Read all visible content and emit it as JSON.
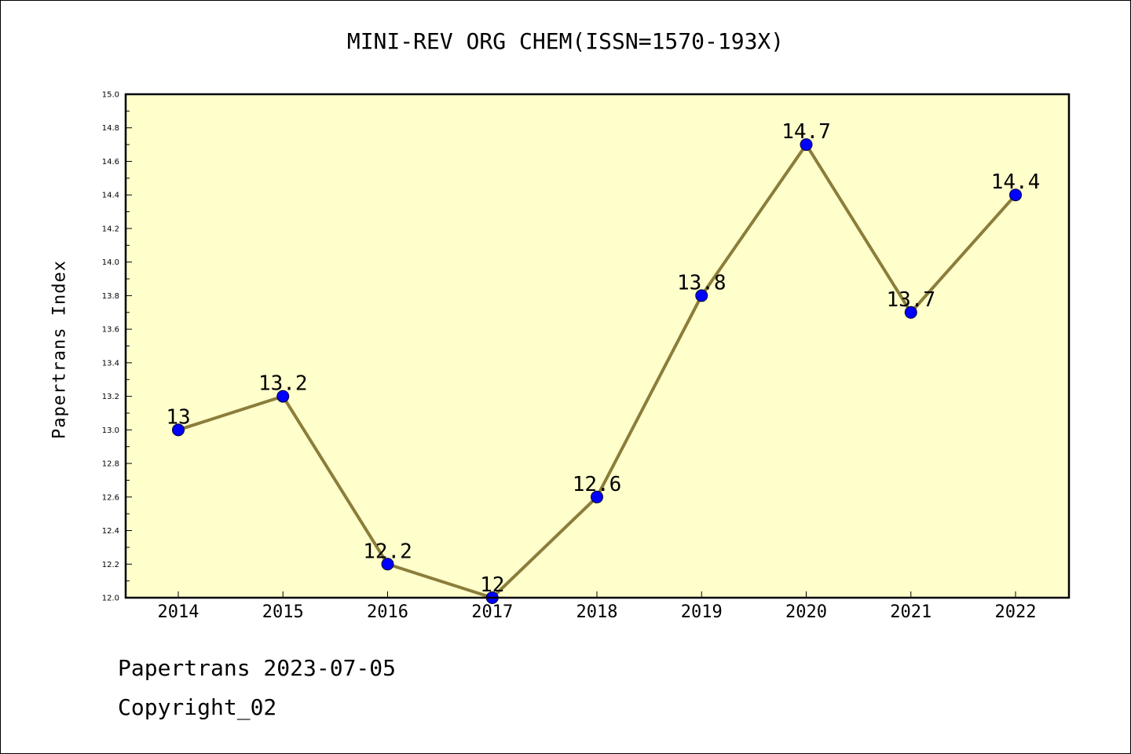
{
  "colors": {
    "plot_background": "#ffffcc",
    "line": "#8b7d3a",
    "marker": "#0000ff"
  },
  "footer": {
    "line1": "Papertrans 2023-07-05",
    "line2": "Copyright_02"
  },
  "chart_data": {
    "type": "line",
    "title": "MINI-REV ORG CHEM(ISSN=1570-193X)",
    "xlabel": "",
    "ylabel": "Papertrans Index",
    "categories": [
      "2014",
      "2015",
      "2016",
      "2017",
      "2018",
      "2019",
      "2020",
      "2021",
      "2022"
    ],
    "series": [
      {
        "values": [
          13,
          13.2,
          12.2,
          12,
          12.6,
          13.8,
          14.7,
          13.7,
          14.4
        ],
        "labels": [
          "13",
          "13.2",
          "12.2",
          "12",
          "12.6",
          "13.8",
          "14.7",
          "13.7",
          "14.4"
        ]
      }
    ],
    "ylim": [
      12.0,
      15.0
    ],
    "yticks": [
      "12.0",
      "12.2",
      "12.4",
      "12.6",
      "12.8",
      "13.0",
      "13.2",
      "13.4",
      "13.6",
      "13.8",
      "14.0",
      "14.2",
      "14.4",
      "14.6",
      "14.8",
      "15.0"
    ],
    "grid": false,
    "legend": "none"
  }
}
